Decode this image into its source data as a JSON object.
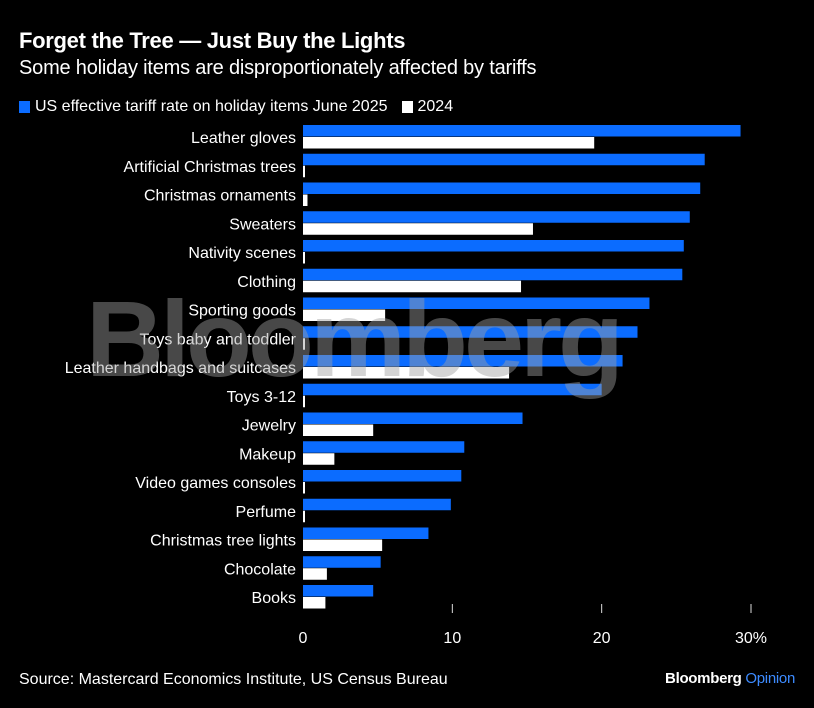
{
  "header": {
    "title": "Forget the Tree — Just Buy the Lights",
    "subtitle": "Some holiday items are disproportionately affected by tariffs"
  },
  "footer": {
    "source": "Source: Mastercard Economics Institute, US Census Bureau",
    "brand": "Bloomberg",
    "brand_suffix": "Opinion"
  },
  "watermark": "Bloomberg",
  "colors": {
    "series_2025": "#0b6cff",
    "series_2024": "#ffffff",
    "background": "#000000",
    "brand_accent": "#3d8bff"
  },
  "chart_data": {
    "type": "bar",
    "orientation": "horizontal",
    "title": "Forget the Tree — Just Buy the Lights",
    "subtitle": "Some holiday items are disproportionately affected by tariffs",
    "xlabel": "",
    "ylabel": "",
    "xlim": [
      0,
      30
    ],
    "x_ticks": [
      0,
      10,
      20,
      30
    ],
    "x_tick_labels": [
      "0",
      "10",
      "20",
      "30%"
    ],
    "grid": false,
    "legend_position": "top-left",
    "categories": [
      "Leather gloves",
      "Artificial Christmas trees",
      "Christmas ornaments",
      "Sweaters",
      "Nativity scenes",
      "Clothing",
      "Sporting goods",
      "Toys baby and toddler",
      "Leather handbags and suitcases",
      "Toys 3-12",
      "Jewelry",
      "Makeup",
      "Video games consoles",
      "Perfume",
      "Christmas tree lights",
      "Chocolate",
      "Books"
    ],
    "series": [
      {
        "name": "US effective tariff rate on holiday items June 2025",
        "color": "#0b6cff",
        "values": [
          29.3,
          26.9,
          26.6,
          25.9,
          25.5,
          25.4,
          23.2,
          22.4,
          21.4,
          20.0,
          14.7,
          10.8,
          10.6,
          9.9,
          8.4,
          5.2,
          4.7
        ]
      },
      {
        "name": "2024",
        "color": "#ffffff",
        "values": [
          19.5,
          0.1,
          0.3,
          15.4,
          0.1,
          14.6,
          5.5,
          0.1,
          13.8,
          0.1,
          4.7,
          2.1,
          0.1,
          0.1,
          5.3,
          1.6,
          1.5
        ]
      }
    ]
  }
}
